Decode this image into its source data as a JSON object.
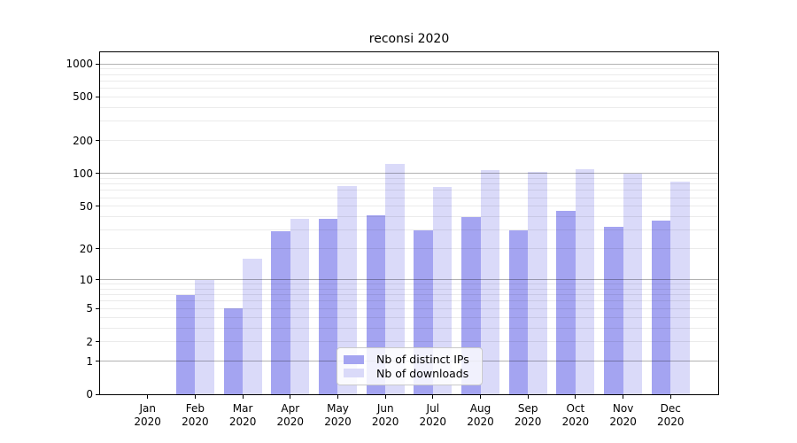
{
  "chart_data": {
    "type": "bar",
    "title": "reconsi 2020",
    "categories": [
      "Jan",
      "Feb",
      "Mar",
      "Apr",
      "May",
      "Jun",
      "Jul",
      "Aug",
      "Sep",
      "Oct",
      "Nov",
      "Dec"
    ],
    "x_year_label": "2020",
    "series": [
      {
        "name": "Nb of distinct IPs",
        "color": "#a4a4f1",
        "values": [
          0,
          7,
          5,
          29,
          38,
          41,
          30,
          40,
          30,
          45,
          32,
          37
        ]
      },
      {
        "name": "Nb of downloads",
        "color": "#dadaf9",
        "values": [
          0,
          10,
          16,
          38,
          77,
          122,
          75,
          107,
          103,
          110,
          100,
          84
        ]
      }
    ],
    "xlabel": "",
    "ylabel": "",
    "y_scale": "log10(1+value)",
    "y_ticks": [
      0,
      1,
      2,
      5,
      10,
      20,
      50,
      100,
      200,
      500,
      1000
    ],
    "ylim": [
      0,
      1273
    ],
    "grid": {
      "minor_lines": "2-9 per decade",
      "major_lines": [
        1,
        10,
        100,
        1000
      ]
    },
    "legend_position": "inside-bottom-center"
  }
}
